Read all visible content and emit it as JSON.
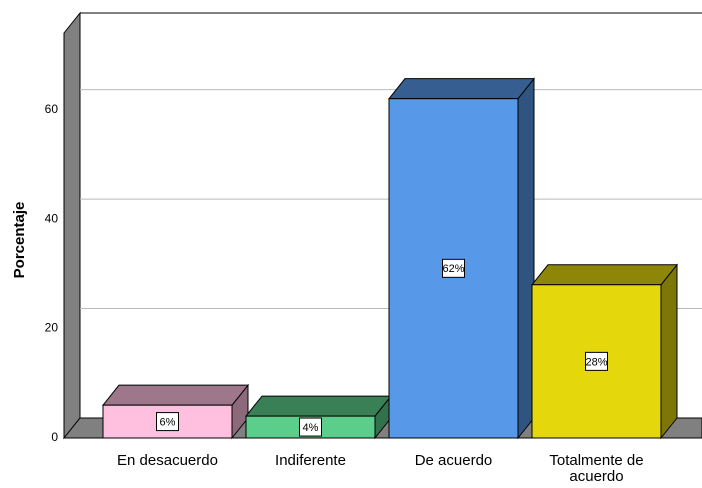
{
  "chart_data": {
    "type": "bar3d",
    "y_label": "Porcentaje",
    "categories": [
      "En desacuerdo",
      "Indiferente",
      "De acuerdo",
      "Totalmente de acuerdo"
    ],
    "values": [
      6,
      4,
      62,
      28
    ],
    "value_labels": [
      "6%",
      "4%",
      "62%",
      "28%"
    ],
    "colors": [
      "#ffc0e0",
      "#5cce8c",
      "#5898e8",
      "#e4d80c"
    ],
    "ylim": [
      0,
      74
    ],
    "yticks": [
      0,
      20,
      40,
      60
    ],
    "grid": true
  }
}
